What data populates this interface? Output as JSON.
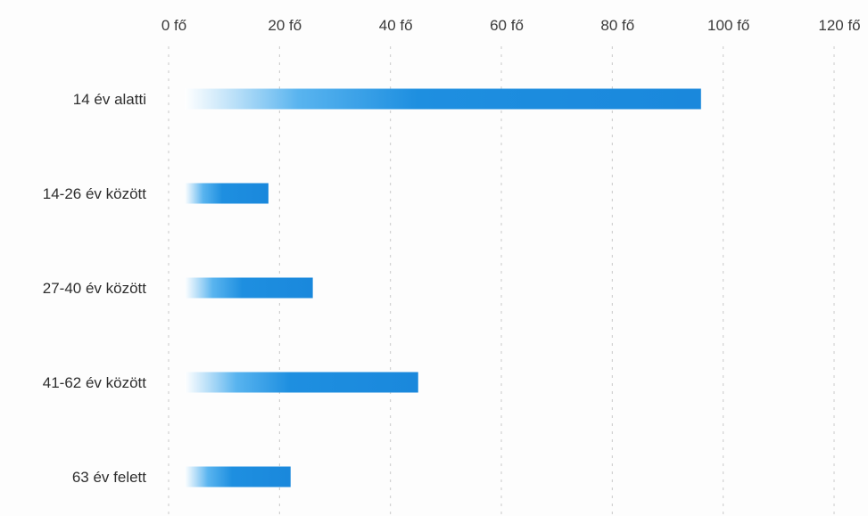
{
  "chart_data": {
    "type": "bar",
    "orientation": "horizontal",
    "categories": [
      "14 év alatti",
      "14-26 év között",
      "27-40 év között",
      "41-62 év között",
      "63 év felett"
    ],
    "series": [
      {
        "values": [
          96,
          18,
          26,
          45,
          22
        ]
      }
    ],
    "x_ticks": [
      "0 fő",
      "20 fő",
      "40 fő",
      "60 fő",
      "80 fő",
      "100 fő",
      "120 fő"
    ],
    "xlim": [
      0,
      120
    ],
    "x_axis_position": "top",
    "grid": true,
    "legend": "none",
    "colors": {
      "bar": "#1e8fe0",
      "bar_fade": "#ffffff",
      "grid": "#c9c9c9",
      "text": "#333333"
    }
  }
}
